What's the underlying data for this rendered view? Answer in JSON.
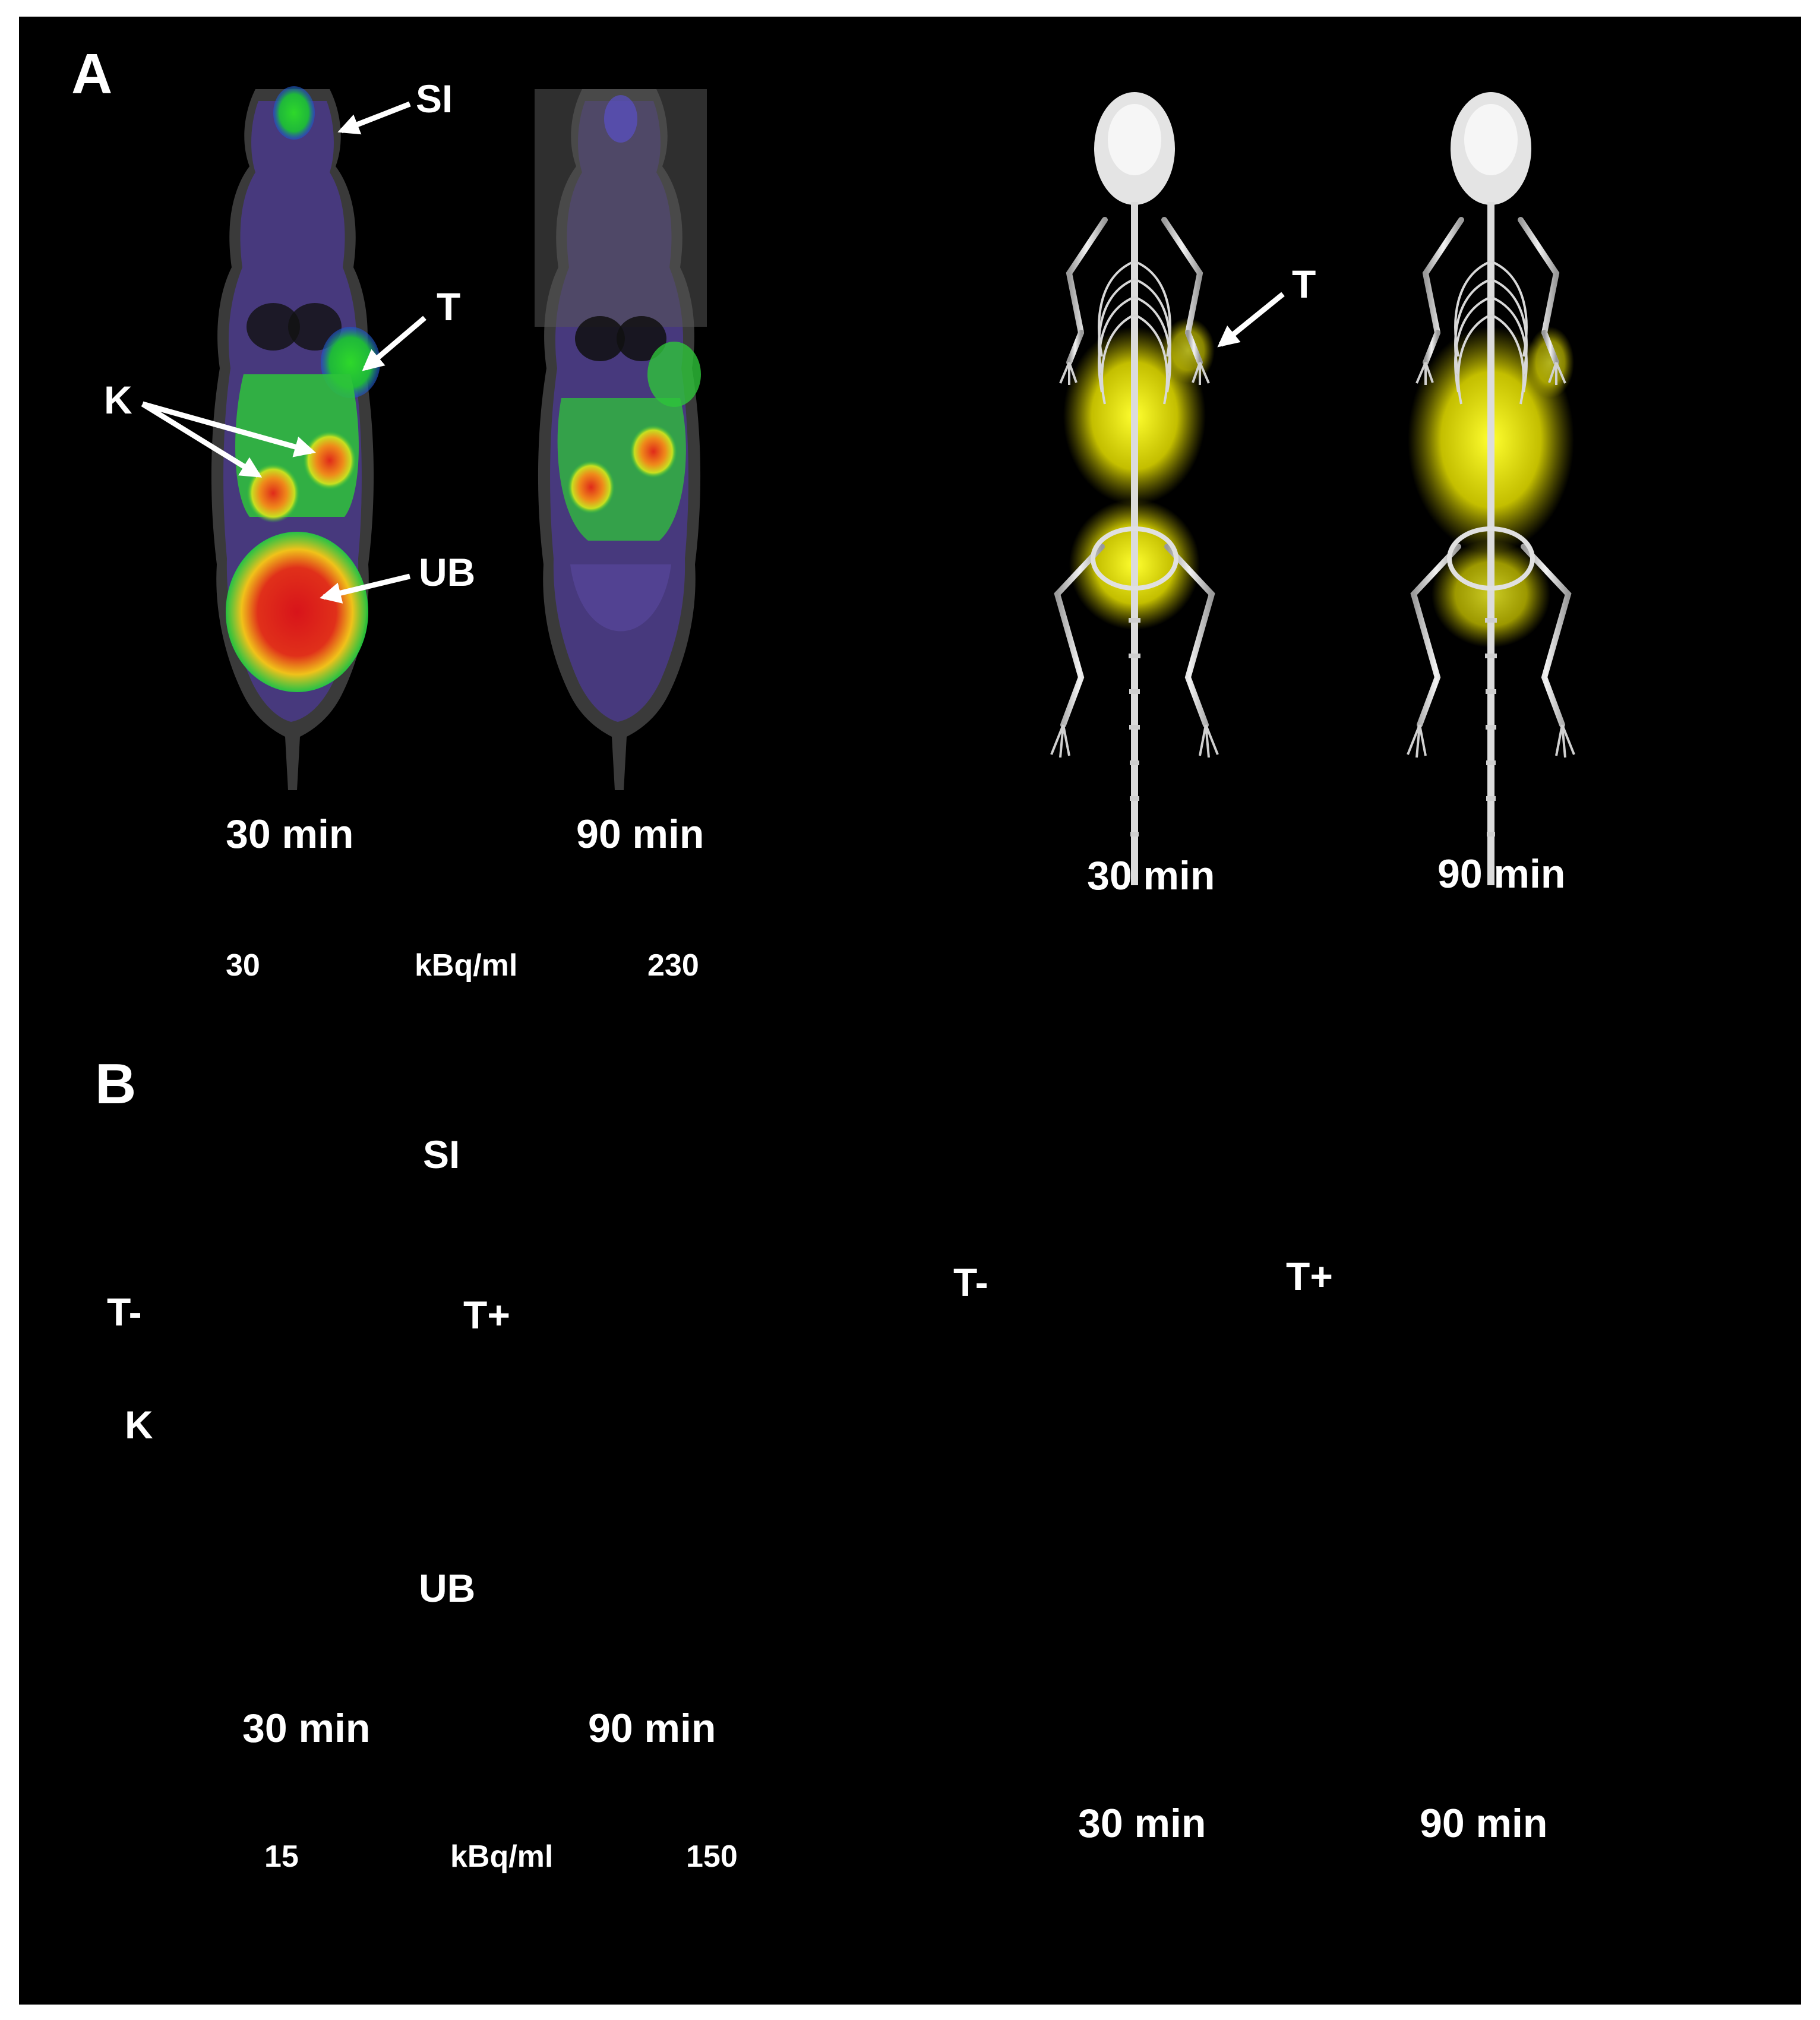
{
  "panels": {
    "A": {
      "letter": "A",
      "organs": {
        "si": "SI",
        "t_pet": "T",
        "k": "K",
        "ub": "UB",
        "t_3d": "T"
      },
      "pet_times": [
        "30 min",
        "90 min"
      ],
      "render_times": [
        "30 min",
        "90 min"
      ],
      "scale": {
        "min": "30",
        "unit": "kBq/ml",
        "max": "230"
      }
    },
    "B": {
      "letter": "B",
      "organs": {
        "si": "SI",
        "t_minus": "T-",
        "t_plus": "T+",
        "k": "K",
        "ub": "UB",
        "t_minus_3d": "T-",
        "t_plus_3d": "T+"
      },
      "pet_times": [
        "30 min",
        "90 min"
      ],
      "render_times": [
        "30 min",
        "90 min"
      ],
      "scale": {
        "min": "15",
        "unit": "kBq/ml",
        "max": "150"
      }
    }
  },
  "colors": {
    "background": "#000000",
    "label": "#ffffff",
    "render_highlight": "#e6e000"
  },
  "colormap": [
    "#200030",
    "#3a1a7a",
    "#1f3cff",
    "#1fd01f",
    "#e8e81a",
    "#f07a1a",
    "#e81a1a"
  ]
}
